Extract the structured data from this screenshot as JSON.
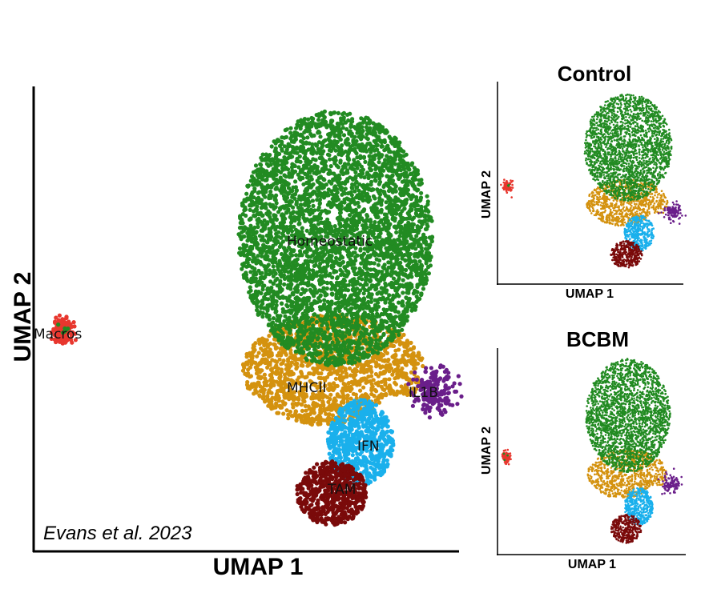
{
  "chart_data": [
    {
      "type": "scatter",
      "panel": "main",
      "xlabel": "UMAP 1",
      "ylabel": "UMAP 2",
      "citation": "Evans et al. 2023",
      "clusters": [
        {
          "name": "Homeostatic",
          "color": "#228b22"
        },
        {
          "name": "MHCII",
          "color": "#d4920f"
        },
        {
          "name": "IFN",
          "color": "#1ab0ec"
        },
        {
          "name": "TAM",
          "color": "#7a0a0a"
        },
        {
          "name": "IL1B",
          "color": "#6a1e8a"
        },
        {
          "name": "Macros",
          "color": "#e8372e"
        }
      ]
    },
    {
      "type": "scatter",
      "panel": "control",
      "title": "Control",
      "xlabel": "UMAP 1",
      "ylabel": "UMAP 2"
    },
    {
      "type": "scatter",
      "panel": "bcbm",
      "title": "BCBM",
      "xlabel": "UMAP 1",
      "ylabel": "UMAP 2"
    }
  ]
}
